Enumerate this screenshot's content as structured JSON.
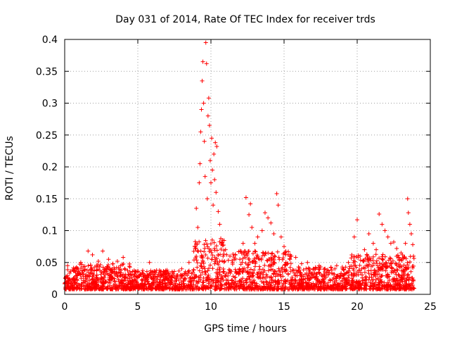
{
  "chart_data": {
    "type": "scatter",
    "title": "Day 031 of 2014, Rate Of TEC Index for receiver trds",
    "xlabel": "GPS time / hours",
    "ylabel": "ROTI / TECUs",
    "xlim": [
      0,
      25
    ],
    "ylim": [
      0,
      0.4
    ],
    "xticks": [
      "0",
      "5",
      "10",
      "15",
      "20",
      "25"
    ],
    "yticks": [
      "0",
      "0.05",
      "0.1",
      "0.15",
      "0.2",
      "0.25",
      "0.3",
      "0.35",
      "0.4"
    ],
    "grid": true,
    "marker": "+",
    "color": "#ff0000",
    "points": [
      [
        0.1,
        0.028
      ],
      [
        0.2,
        0.045
      ],
      [
        0.4,
        0.036
      ],
      [
        0.8,
        0.04
      ],
      [
        1.1,
        0.05
      ],
      [
        1.6,
        0.068
      ],
      [
        1.9,
        0.062
      ],
      [
        2.3,
        0.052
      ],
      [
        2.6,
        0.068
      ],
      [
        3.0,
        0.055
      ],
      [
        3.3,
        0.048
      ],
      [
        3.6,
        0.052
      ],
      [
        4.0,
        0.058
      ],
      [
        4.4,
        0.03
      ],
      [
        5.0,
        0.026
      ],
      [
        5.5,
        0.03
      ],
      [
        5.8,
        0.05
      ],
      [
        6.2,
        0.034
      ],
      [
        6.6,
        0.031
      ],
      [
        7.0,
        0.038
      ],
      [
        7.5,
        0.036
      ],
      [
        8.0,
        0.04
      ],
      [
        8.5,
        0.05
      ],
      [
        8.9,
        0.075
      ],
      [
        9.0,
        0.135
      ],
      [
        9.1,
        0.105
      ],
      [
        9.2,
        0.175
      ],
      [
        9.25,
        0.205
      ],
      [
        9.3,
        0.255
      ],
      [
        9.35,
        0.29
      ],
      [
        9.4,
        0.335
      ],
      [
        9.45,
        0.365
      ],
      [
        9.5,
        0.3
      ],
      [
        9.55,
        0.24
      ],
      [
        9.6,
        0.185
      ],
      [
        9.65,
        0.395
      ],
      [
        9.7,
        0.362
      ],
      [
        9.75,
        0.15
      ],
      [
        9.8,
        0.28
      ],
      [
        9.85,
        0.308
      ],
      [
        9.9,
        0.265
      ],
      [
        9.95,
        0.21
      ],
      [
        10.0,
        0.175
      ],
      [
        10.05,
        0.245
      ],
      [
        10.1,
        0.195
      ],
      [
        10.15,
        0.14
      ],
      [
        10.2,
        0.22
      ],
      [
        10.25,
        0.18
      ],
      [
        10.3,
        0.238
      ],
      [
        10.35,
        0.16
      ],
      [
        10.4,
        0.232
      ],
      [
        10.5,
        0.13
      ],
      [
        10.6,
        0.11
      ],
      [
        10.8,
        0.085
      ],
      [
        11.0,
        0.07
      ],
      [
        11.3,
        0.06
      ],
      [
        11.6,
        0.055
      ],
      [
        12.0,
        0.068
      ],
      [
        12.2,
        0.08
      ],
      [
        12.4,
        0.152
      ],
      [
        12.6,
        0.125
      ],
      [
        12.7,
        0.142
      ],
      [
        12.8,
        0.105
      ],
      [
        13.0,
        0.08
      ],
      [
        13.2,
        0.09
      ],
      [
        13.5,
        0.1
      ],
      [
        13.7,
        0.128
      ],
      [
        13.9,
        0.12
      ],
      [
        14.1,
        0.112
      ],
      [
        14.3,
        0.095
      ],
      [
        14.5,
        0.158
      ],
      [
        14.6,
        0.14
      ],
      [
        14.8,
        0.09
      ],
      [
        15.0,
        0.075
      ],
      [
        15.4,
        0.055
      ],
      [
        15.8,
        0.058
      ],
      [
        16.2,
        0.048
      ],
      [
        16.6,
        0.05
      ],
      [
        17.0,
        0.04
      ],
      [
        17.4,
        0.045
      ],
      [
        17.8,
        0.04
      ],
      [
        18.2,
        0.042
      ],
      [
        18.6,
        0.045
      ],
      [
        19.0,
        0.04
      ],
      [
        19.4,
        0.05
      ],
      [
        19.8,
        0.09
      ],
      [
        20.0,
        0.117
      ],
      [
        20.2,
        0.06
      ],
      [
        20.5,
        0.07
      ],
      [
        20.8,
        0.095
      ],
      [
        21.1,
        0.08
      ],
      [
        21.3,
        0.07
      ],
      [
        21.5,
        0.126
      ],
      [
        21.7,
        0.11
      ],
      [
        21.9,
        0.1
      ],
      [
        22.1,
        0.09
      ],
      [
        22.3,
        0.08
      ],
      [
        22.5,
        0.082
      ],
      [
        22.7,
        0.072
      ],
      [
        23.0,
        0.065
      ],
      [
        23.3,
        0.08
      ],
      [
        23.45,
        0.15
      ],
      [
        23.5,
        0.128
      ],
      [
        23.6,
        0.11
      ],
      [
        23.7,
        0.095
      ],
      [
        23.8,
        0.078
      ],
      [
        23.85,
        0.06
      ]
    ]
  }
}
